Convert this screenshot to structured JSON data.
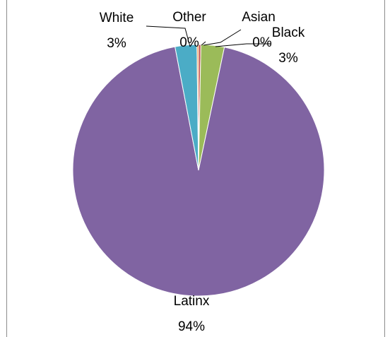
{
  "chart_data": {
    "type": "pie",
    "title": "",
    "slices": [
      {
        "label": "Asian",
        "percent_label": "0%",
        "value": 0.3,
        "color": "#C0504D"
      },
      {
        "label": "Black",
        "percent_label": "3%",
        "value": 3.0,
        "color": "#9BBB59"
      },
      {
        "label": "Latinx",
        "percent_label": "94%",
        "value": 93.7,
        "color": "#8064A2"
      },
      {
        "label": "White",
        "percent_label": "3%",
        "value": 2.8,
        "color": "#4BACC6"
      },
      {
        "label": "Other",
        "percent_label": "0%",
        "value": 0.2,
        "color": "#F79646"
      }
    ]
  }
}
